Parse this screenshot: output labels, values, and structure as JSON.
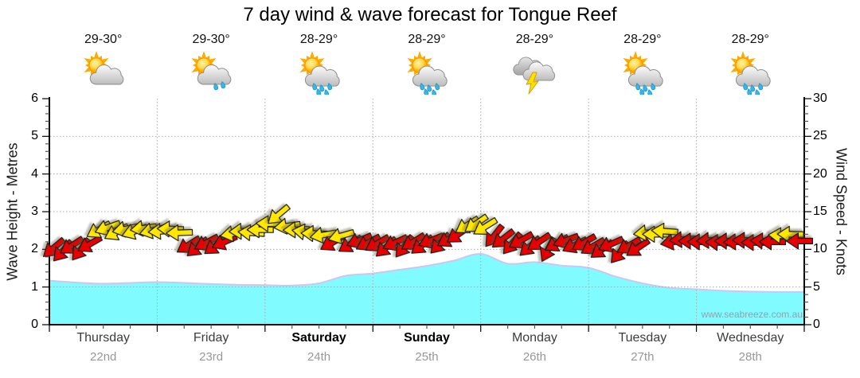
{
  "title": "7 day wind & wave forecast for Tongue Reef",
  "watermark": "www.seabreeze.com.au",
  "axes": {
    "left_label": "Wave Height - Metres",
    "right_label": "Wind Speed - Knots",
    "left_ticks": [
      0,
      1,
      2,
      3,
      4,
      5,
      6
    ],
    "right_ticks": [
      0,
      5,
      10,
      15,
      20,
      25,
      30
    ]
  },
  "days": [
    {
      "name": "Thursday",
      "date": "22nd",
      "temp": "29-30°",
      "icon": "partly-cloudy",
      "weekend": false
    },
    {
      "name": "Friday",
      "date": "23rd",
      "temp": "29-30°",
      "icon": "light-showers",
      "weekend": false
    },
    {
      "name": "Saturday",
      "date": "24th",
      "temp": "28-29°",
      "icon": "showers",
      "weekend": true
    },
    {
      "name": "Sunday",
      "date": "25th",
      "temp": "28-29°",
      "icon": "showers",
      "weekend": true
    },
    {
      "name": "Monday",
      "date": "26th",
      "temp": "28-29°",
      "icon": "thunderstorm",
      "weekend": false
    },
    {
      "name": "Tuesday",
      "date": "27th",
      "temp": "28-29°",
      "icon": "showers",
      "weekend": false
    },
    {
      "name": "Wednesday",
      "date": "28th",
      "temp": "28-29°",
      "icon": "showers",
      "weekend": false
    }
  ],
  "chart_data": {
    "type": "area+wind-arrows",
    "title": "7 day wind & wave forecast for Tongue Reef",
    "ylabel_left": "Wave Height - Metres",
    "ylabel_right": "Wind Speed - Knots",
    "ylim_left_metres": [
      0,
      6
    ],
    "ylim_right_knots": [
      0,
      30
    ],
    "grid": "dotted horizontal each metre, dotted vertical each midnight",
    "x_categories": [
      "Thursday 22nd",
      "Friday 23rd",
      "Saturday 24th",
      "Sunday 25th",
      "Monday 26th",
      "Tuesday 27th",
      "Wednesday 28th"
    ],
    "wave_height_m": {
      "step_hours": 6,
      "values": [
        1.17,
        1.12,
        1.09,
        1.11,
        1.13,
        1.11,
        1.08,
        1.06,
        1.05,
        1.04,
        1.1,
        1.3,
        1.36,
        1.46,
        1.56,
        1.7,
        1.88,
        1.62,
        1.66,
        1.57,
        1.51,
        1.28,
        1.1,
        0.98,
        0.94,
        0.9,
        0.88,
        0.87,
        0.87
      ]
    },
    "wind_arrows": {
      "step_hours": 2,
      "dir_note": "degrees clockwise, 0 = arrow points east, 180 = points west",
      "points": [
        [
          10.2,
          140,
          "r"
        ],
        [
          9.8,
          132,
          "r"
        ],
        [
          10.5,
          147,
          "r"
        ],
        [
          10.0,
          128,
          "r"
        ],
        [
          10.7,
          150,
          "r"
        ],
        [
          12.6,
          150,
          "y"
        ],
        [
          12.9,
          160,
          "y"
        ],
        [
          12.3,
          152,
          "y"
        ],
        [
          12.7,
          168,
          "y"
        ],
        [
          12.4,
          160,
          "y"
        ],
        [
          12.8,
          172,
          "y"
        ],
        [
          12.5,
          166,
          "y"
        ],
        [
          12.4,
          176,
          "y"
        ],
        [
          12.7,
          182,
          "y"
        ],
        [
          12.2,
          178,
          "y"
        ],
        [
          10.6,
          148,
          "r"
        ],
        [
          10.3,
          140,
          "r"
        ],
        [
          10.9,
          152,
          "r"
        ],
        [
          10.5,
          144,
          "r"
        ],
        [
          11.0,
          156,
          "r"
        ],
        [
          12.1,
          170,
          "y"
        ],
        [
          12.4,
          178,
          "y"
        ],
        [
          12.2,
          184,
          "y"
        ],
        [
          12.6,
          180,
          "y"
        ],
        [
          13.4,
          182,
          "y"
        ],
        [
          14.6,
          140,
          "y"
        ],
        [
          13.1,
          172,
          "y"
        ],
        [
          12.6,
          178,
          "y"
        ],
        [
          12.3,
          188,
          "y"
        ],
        [
          12.1,
          182,
          "y"
        ],
        [
          11.9,
          170,
          "y"
        ],
        [
          10.9,
          150,
          "r"
        ],
        [
          11.8,
          164,
          "y"
        ],
        [
          10.7,
          148,
          "r"
        ],
        [
          11.2,
          158,
          "r"
        ],
        [
          10.9,
          152,
          "r"
        ],
        [
          10.8,
          150,
          "r"
        ],
        [
          10.3,
          138,
          "r"
        ],
        [
          10.9,
          155,
          "r"
        ],
        [
          10.4,
          128,
          "r"
        ],
        [
          11.0,
          148,
          "r"
        ],
        [
          10.6,
          142,
          "r"
        ],
        [
          11.2,
          158,
          "r"
        ],
        [
          10.8,
          134,
          "r"
        ],
        [
          11.4,
          150,
          "r"
        ],
        [
          12.0,
          145,
          "r"
        ],
        [
          13.2,
          148,
          "y"
        ],
        [
          13.4,
          145,
          "y"
        ],
        [
          13.0,
          148,
          "y"
        ],
        [
          11.8,
          128,
          "r"
        ],
        [
          11.4,
          142,
          "r"
        ],
        [
          10.8,
          130,
          "r"
        ],
        [
          11.2,
          150,
          "r"
        ],
        [
          10.4,
          138,
          "r"
        ],
        [
          11.0,
          146,
          "r"
        ],
        [
          10.0,
          117,
          "r"
        ],
        [
          10.8,
          150,
          "r"
        ],
        [
          11.2,
          160,
          "r"
        ],
        [
          10.6,
          154,
          "r"
        ],
        [
          10.9,
          150,
          "r"
        ],
        [
          10.4,
          150,
          "r"
        ],
        [
          10.0,
          144,
          "r"
        ],
        [
          10.7,
          156,
          "r"
        ],
        [
          9.6,
          130,
          "r"
        ],
        [
          10.5,
          150,
          "r"
        ],
        [
          10.2,
          146,
          "r"
        ],
        [
          12.2,
          174,
          "y"
        ],
        [
          12.0,
          180,
          "y"
        ],
        [
          12.4,
          184,
          "y"
        ],
        [
          11.0,
          170,
          "r"
        ],
        [
          11.3,
          176,
          "r"
        ],
        [
          11.1,
          180,
          "r"
        ],
        [
          11.0,
          180,
          "r"
        ],
        [
          11.2,
          177,
          "r"
        ],
        [
          10.9,
          182,
          "r"
        ],
        [
          11.1,
          180,
          "r"
        ],
        [
          11.0,
          178,
          "r"
        ],
        [
          11.2,
          181,
          "r"
        ],
        [
          10.9,
          180,
          "r"
        ],
        [
          11.1,
          183,
          "r"
        ],
        [
          11.0,
          180,
          "r"
        ],
        [
          11.8,
          184,
          "y"
        ],
        [
          12.0,
          181,
          "y"
        ],
        [
          11.1,
          180,
          "r"
        ]
      ]
    },
    "colors": {
      "wave_fill": "#80fbff",
      "wave_edge": "#cdc6ef",
      "arrow_yellow": "#ffe800",
      "arrow_red": "#e60000",
      "grid": "#aaaaaa",
      "axis": "#000000"
    }
  }
}
